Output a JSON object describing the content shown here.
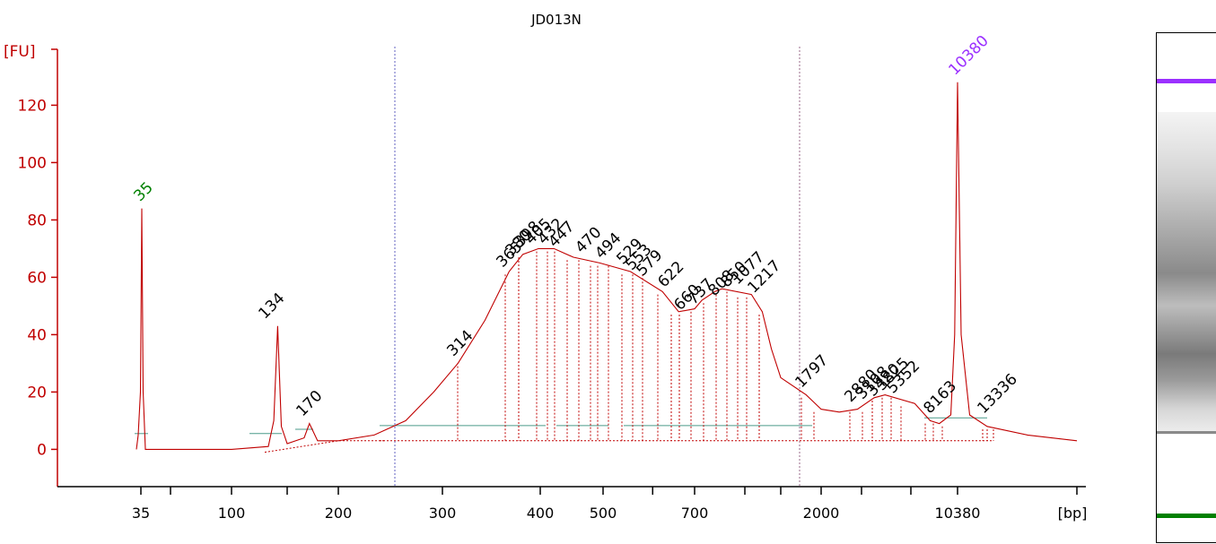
{
  "chart_data": {
    "type": "line",
    "title": "JD013N",
    "ylabel": "[FU]",
    "xlabel": "[bp]",
    "ylim": [
      -13,
      140
    ],
    "yticks": [
      0,
      20,
      40,
      60,
      80,
      100,
      120
    ],
    "xtick_labels": [
      "35",
      "100",
      "200",
      "300",
      "400",
      "500",
      "700",
      "2000",
      "10380"
    ],
    "marker_labels": [
      "35",
      "10380"
    ],
    "peak_labels": [
      "134",
      "170",
      "314",
      "365",
      "380",
      "398",
      "405",
      "432",
      "447",
      "470",
      "494",
      "529",
      "553",
      "579",
      "622",
      "660",
      "737",
      "808",
      "850",
      "1077",
      "1217",
      "1797",
      "2880",
      "3108",
      "3420",
      "3825",
      "5352",
      "8163",
      "13336"
    ],
    "series": [
      {
        "points": [
          [
            35,
            0
          ],
          [
            35,
            5
          ],
          [
            35,
            20
          ],
          [
            35,
            84
          ],
          [
            35,
            20
          ],
          [
            35,
            0
          ],
          [
            60,
            0
          ],
          [
            100,
            0
          ],
          [
            120,
            1
          ],
          [
            128,
            10
          ],
          [
            134,
            43
          ],
          [
            140,
            8
          ],
          [
            150,
            2
          ],
          [
            165,
            4
          ],
          [
            170,
            9
          ],
          [
            178,
            3
          ],
          [
            200,
            3
          ],
          [
            230,
            5
          ],
          [
            260,
            10
          ],
          [
            290,
            20
          ],
          [
            314,
            30
          ],
          [
            340,
            45
          ],
          [
            365,
            62
          ],
          [
            380,
            68
          ],
          [
            398,
            70
          ],
          [
            420,
            70
          ],
          [
            450,
            67
          ],
          [
            494,
            65
          ],
          [
            553,
            62
          ],
          [
            622,
            55
          ],
          [
            660,
            48
          ],
          [
            700,
            49
          ],
          [
            737,
            52
          ],
          [
            808,
            55
          ],
          [
            850,
            56
          ],
          [
            1077,
            54
          ],
          [
            1217,
            48
          ],
          [
            1350,
            35
          ],
          [
            1500,
            25
          ],
          [
            1797,
            19
          ],
          [
            2000,
            14
          ],
          [
            2400,
            13
          ],
          [
            2880,
            14
          ],
          [
            3420,
            18
          ],
          [
            3825,
            19
          ],
          [
            5352,
            16
          ],
          [
            7000,
            10
          ],
          [
            8163,
            9
          ],
          [
            9500,
            12
          ],
          [
            10000,
            40
          ],
          [
            10380,
            128
          ],
          [
            10700,
            40
          ],
          [
            11500,
            12
          ],
          [
            13336,
            8
          ],
          [
            16000,
            5
          ],
          [
            20000,
            3
          ]
        ]
      }
    ],
    "dotted_baseline": [
      [
        115,
        -1
      ],
      [
        200,
        3
      ],
      [
        240,
        3
      ]
    ],
    "colors": {
      "trace": "#c00000",
      "axis": "#c00000",
      "lower_marker": "#008000",
      "upper_marker": "#9b30ff",
      "baseline": "#4a9a8a"
    }
  },
  "gel_bands": [
    {
      "name": "upper-marker-band",
      "level": 0.09,
      "color": "#9b30ff"
    },
    {
      "name": "lower-marker-band",
      "level": 0.94,
      "color": "#008000"
    }
  ]
}
